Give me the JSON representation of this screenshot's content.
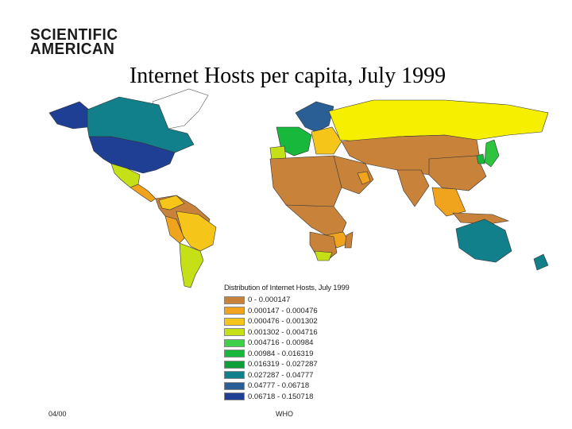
{
  "logo": {
    "line1": "SCIENTIFIC",
    "line2": "AMERICAN"
  },
  "title": "Internet Hosts per capita, July 1999",
  "legend": {
    "title": "Distribution of Internet Hosts, July 1999",
    "items": [
      {
        "label": "0 - 0.000147",
        "color": "#c8823a"
      },
      {
        "label": "0.000147 - 0.000476",
        "color": "#f0a31c"
      },
      {
        "label": "0.000476 - 0.001302",
        "color": "#f6c51a"
      },
      {
        "label": "0.001302 - 0.004716",
        "color": "#c6e018"
      },
      {
        "label": "0.004716 - 0.00984",
        "color": "#3fcf4a"
      },
      {
        "label": "0.00984 - 0.016319",
        "color": "#17b83c"
      },
      {
        "label": "0.016319 - 0.027287",
        "color": "#0e9e3a"
      },
      {
        "label": "0.027287 - 0.04777",
        "color": "#12808a"
      },
      {
        "label": "0.04777 - 0.06718",
        "color": "#2a5f96"
      },
      {
        "label": "0.06718 - 0.150718",
        "color": "#1f3f94"
      }
    ]
  },
  "footer": {
    "left": "04/00",
    "center": "WHO"
  },
  "colors": {
    "low": "#c8823a",
    "orange": "#f0a31c",
    "yellow": "#f6f000",
    "lime": "#c6e018",
    "green": "#2ec440",
    "teal": "#12808a",
    "navy": "#1f3f94",
    "steel": "#2a5f96"
  }
}
